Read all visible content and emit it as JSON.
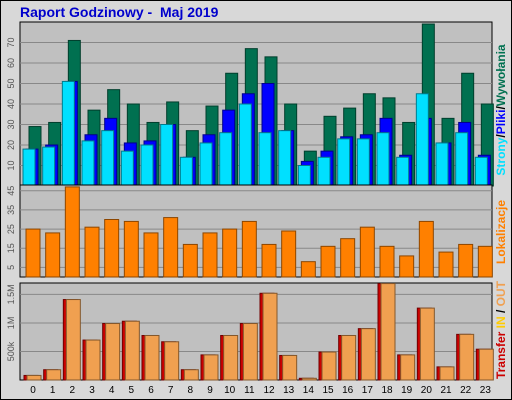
{
  "title": "Raport Godzinowy -  Maj 2019",
  "colors": {
    "hits": "#007050",
    "files": "#0000ff",
    "pages": "#00e0ff",
    "sites": "#ff8000",
    "transfer_in": "#cc0000",
    "transfer_out": "#f0a050"
  },
  "side_labels": {
    "top": [
      "Strony",
      "/",
      "Pliki",
      "/",
      "Wywołania"
    ],
    "middle": "Lokalizacje",
    "bottom": [
      "Transfer",
      " IN",
      " / ",
      "OUT"
    ]
  },
  "chart_data": [
    {
      "type": "bar",
      "title": "",
      "categories": [
        "0",
        "1",
        "2",
        "3",
        "4",
        "5",
        "6",
        "7",
        "8",
        "9",
        "10",
        "11",
        "12",
        "13",
        "14",
        "15",
        "16",
        "17",
        "18",
        "19",
        "20",
        "21",
        "22",
        "23"
      ],
      "ylim": [
        0,
        80
      ],
      "yticks": [
        10,
        20,
        30,
        40,
        50,
        60,
        70
      ],
      "series": [
        {
          "name": "Wywołania",
          "color_key": "hits",
          "values": [
            29,
            31,
            71,
            37,
            47,
            40,
            31,
            41,
            27,
            39,
            55,
            67,
            63,
            40,
            17,
            34,
            38,
            45,
            43,
            31,
            79,
            33,
            55,
            40
          ]
        },
        {
          "name": "Pliki",
          "color_key": "files",
          "values": [
            18,
            20,
            51,
            25,
            33,
            21,
            22,
            30,
            14,
            25,
            37,
            45,
            50,
            27,
            12,
            17,
            24,
            25,
            33,
            15,
            33,
            21,
            31,
            15
          ]
        },
        {
          "name": "Strony",
          "color_key": "pages",
          "values": [
            18,
            19,
            51,
            22,
            27,
            17,
            20,
            30,
            14,
            21,
            26,
            40,
            26,
            27,
            10,
            14,
            23,
            23,
            26,
            14,
            45,
            21,
            26,
            14
          ]
        }
      ]
    },
    {
      "type": "bar",
      "title": "",
      "categories": [
        "0",
        "1",
        "2",
        "3",
        "4",
        "5",
        "6",
        "7",
        "8",
        "9",
        "10",
        "11",
        "12",
        "13",
        "14",
        "15",
        "16",
        "17",
        "18",
        "19",
        "20",
        "21",
        "22",
        "23"
      ],
      "ylim": [
        0,
        48
      ],
      "yticks": [
        5,
        15,
        25,
        35,
        45
      ],
      "series": [
        {
          "name": "Lokalizacje",
          "color_key": "sites",
          "values": [
            25,
            23,
            47,
            26,
            30,
            29,
            23,
            31,
            17,
            23,
            25,
            29,
            17,
            24,
            8,
            16,
            20,
            26,
            16,
            11,
            29,
            13,
            17,
            16
          ]
        }
      ]
    },
    {
      "type": "bar",
      "title": "",
      "categories": [
        "0",
        "1",
        "2",
        "3",
        "4",
        "5",
        "6",
        "7",
        "8",
        "9",
        "10",
        "11",
        "12",
        "13",
        "14",
        "15",
        "16",
        "17",
        "18",
        "19",
        "20",
        "21",
        "22",
        "23"
      ],
      "ylim": [
        0,
        1700000
      ],
      "yticks": [
        500000,
        1000000,
        1500000
      ],
      "ytick_labels": [
        "500k",
        "1M",
        "1.5M"
      ],
      "series": [
        {
          "name": "Transfer IN",
          "color_key": "transfer_in",
          "values": [
            80000,
            180000,
            1410000,
            700000,
            990000,
            1030000,
            780000,
            670000,
            180000,
            440000,
            780000,
            990000,
            1520000,
            430000,
            30000,
            490000,
            780000,
            900000,
            1690000,
            440000,
            1260000,
            230000,
            800000,
            540000
          ]
        },
        {
          "name": "Transfer OUT",
          "color_key": "transfer_out",
          "values": [
            80000,
            180000,
            1410000,
            700000,
            990000,
            1030000,
            780000,
            670000,
            180000,
            440000,
            780000,
            990000,
            1520000,
            430000,
            30000,
            490000,
            780000,
            900000,
            1690000,
            440000,
            1260000,
            230000,
            800000,
            540000
          ]
        }
      ]
    }
  ]
}
